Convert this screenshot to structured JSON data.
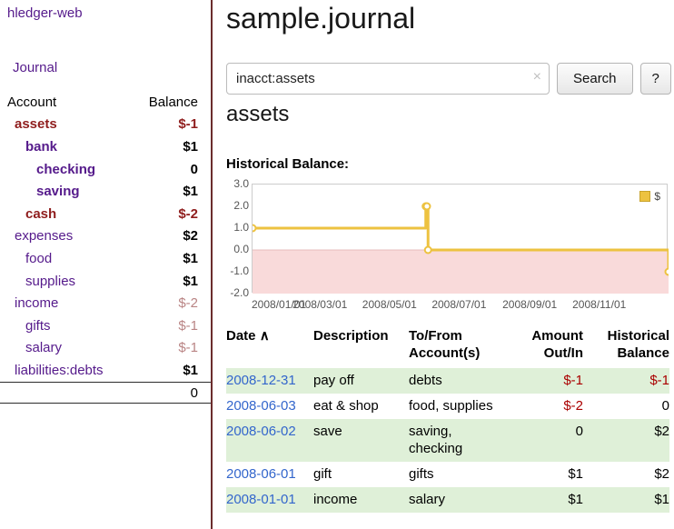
{
  "colors": {
    "purple": "#551a8b",
    "sidebar_neg_strong": "#8f1d1d",
    "sidebar_neg_light": "#b98484",
    "table_neg": "#aa0000",
    "link_blue": "#3366cc",
    "row_green": "#dff0d8",
    "chart_line": "#edc240",
    "chart_neg_fill": "#f9dada",
    "divider": "#6b2c2c"
  },
  "sidebar": {
    "app_title": "hledger-web",
    "journal_link": "Journal",
    "account_header": "Account",
    "balance_header": "Balance",
    "accounts": [
      {
        "name": "assets",
        "balance": "$-1",
        "indent": 1,
        "bold": true,
        "name_red": true,
        "neg": "strong"
      },
      {
        "name": "bank",
        "balance": "$1",
        "indent": 2,
        "bold": true
      },
      {
        "name": "checking",
        "balance": "0",
        "indent": 3,
        "bold": true
      },
      {
        "name": "saving",
        "balance": "$1",
        "indent": 3,
        "bold": true
      },
      {
        "name": "cash",
        "balance": "$-2",
        "indent": 2,
        "bold": true,
        "name_red": true,
        "neg": "strong"
      },
      {
        "name": "expenses",
        "balance": "$2",
        "indent": 1
      },
      {
        "name": "food",
        "balance": "$1",
        "indent": 2
      },
      {
        "name": "supplies",
        "balance": "$1",
        "indent": 2
      },
      {
        "name": "income",
        "balance": "$-2",
        "indent": 1,
        "neg": "light"
      },
      {
        "name": "gifts",
        "balance": "$-1",
        "indent": 2,
        "neg": "light"
      },
      {
        "name": "salary",
        "balance": "$-1",
        "indent": 2,
        "neg": "light"
      },
      {
        "name": "liabilities:debts",
        "balance": "$1",
        "indent": 1
      }
    ],
    "total": "0"
  },
  "main": {
    "title": "sample.journal",
    "search": {
      "value": "inacct:assets",
      "clear": "×",
      "search_label": "Search",
      "help_label": "?"
    },
    "account_heading": "assets",
    "chart_label": "Historical Balance:"
  },
  "chart_data": {
    "type": "line",
    "step": true,
    "legend": "$",
    "ylim": [
      -2,
      3
    ],
    "y_ticks": [
      3,
      2,
      1,
      0,
      -1,
      -2
    ],
    "x_ticks": [
      "2008/01/01",
      "2008/03/01",
      "2008/05/01",
      "2008/07/01",
      "2008/09/01",
      "2008/11/01"
    ],
    "x_tick_days": [
      0,
      60,
      121,
      182,
      244,
      305
    ],
    "x_range_days": 365,
    "points": [
      {
        "date": "2008-01-01",
        "day": 0,
        "value": 1
      },
      {
        "date": "2008-06-01",
        "day": 152,
        "value": 2
      },
      {
        "date": "2008-06-02",
        "day": 153,
        "value": 2
      },
      {
        "date": "2008-06-03",
        "day": 154,
        "value": 0
      },
      {
        "date": "2008-12-31",
        "day": 365,
        "value": -1
      }
    ],
    "negative_region": {
      "from": 0,
      "to": -2
    },
    "legend_position": "top-right",
    "grid": false
  },
  "register": {
    "headers": {
      "date": "Date",
      "sort_icon": "∧",
      "description": "Description",
      "accounts": "To/From Account(s)",
      "amount": "Amount Out/In",
      "balance": "Historical Balance"
    },
    "rows": [
      {
        "date": "2008-12-31",
        "description": "pay off",
        "accounts": "debts",
        "amount": "$-1",
        "amount_negative": true,
        "balance": "$-1",
        "balance_negative": true
      },
      {
        "date": "2008-06-03",
        "description": "eat & shop",
        "accounts": "food, supplies",
        "amount": "$-2",
        "amount_negative": true,
        "balance": "0"
      },
      {
        "date": "2008-06-02",
        "description": "save",
        "accounts": "saving, checking",
        "amount": "0",
        "balance": "$2"
      },
      {
        "date": "2008-06-01",
        "description": "gift",
        "accounts": "gifts",
        "amount": "$1",
        "balance": "$2"
      },
      {
        "date": "2008-01-01",
        "description": "income",
        "accounts": "salary",
        "amount": "$1",
        "balance": "$1"
      }
    ]
  }
}
